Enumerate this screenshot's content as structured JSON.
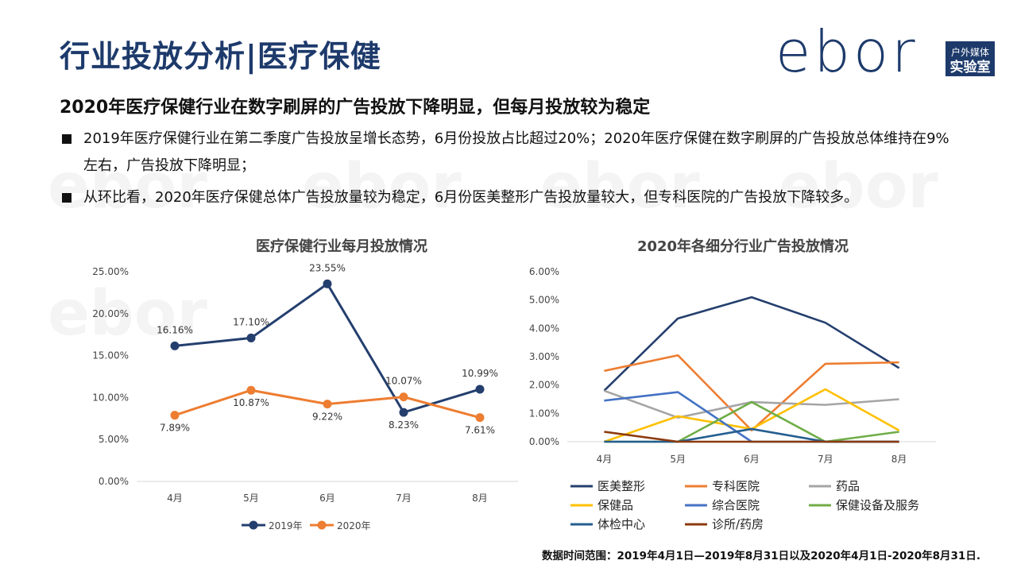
{
  "page": {
    "title": "行业投放分析|医疗保健",
    "subtitle": "2020年医疗保健行业在数字刷屏的广告投放下降明显，但每月投放较为稳定",
    "bullets": [
      "2019年医疗保健行业在第二季度广告投放呈增长态势，6月份投放占比超过20%；2020年医疗保健在数字刷屏的广告投放总体维持在9%左右，广告投放下降明显；",
      "从环比看，2020年医疗保健总体广告投放量较为稳定，6月份医美整形广告投放量较大，但专科医院的广告投放下降较多。"
    ],
    "footer": "数据时间范围：2019年4月1日—2019年8月31日以及2020年4月1日-2020年8月31日."
  },
  "logo": {
    "wordmark": "ebor",
    "line1": "户外媒体",
    "line2": "实验室",
    "color": "#1d3a6b"
  },
  "watermark": "ebor",
  "chart_data": [
    {
      "type": "line",
      "title": "医疗保健行业每月投放情况",
      "categories": [
        "4月",
        "5月",
        "6月",
        "7月",
        "8月"
      ],
      "ylim": [
        0,
        25
      ],
      "yticks": [
        "0.00%",
        "5.00%",
        "10.00%",
        "15.00%",
        "20.00%",
        "25.00%"
      ],
      "series": [
        {
          "name": "2019年",
          "color": "#243f6e",
          "values": [
            16.16,
            17.1,
            23.55,
            8.23,
            10.99
          ],
          "labels": [
            "16.16%",
            "17.10%",
            "23.55%",
            "8.23%",
            "10.99%"
          ]
        },
        {
          "name": "2020年",
          "color": "#ed7d31",
          "values": [
            7.89,
            10.87,
            9.22,
            10.07,
            7.61
          ],
          "labels": [
            "7.89%",
            "10.87%",
            "9.22%",
            "10.07%",
            "7.61%"
          ]
        }
      ],
      "legend": "bottom"
    },
    {
      "type": "line",
      "title": "2020年各细分行业广告投放情况",
      "categories": [
        "4月",
        "5月",
        "6月",
        "7月",
        "8月"
      ],
      "ylim": [
        0,
        6
      ],
      "yticks": [
        "0.00%",
        "1.00%",
        "2.00%",
        "3.00%",
        "4.00%",
        "5.00%",
        "6.00%"
      ],
      "series": [
        {
          "name": "医美整形",
          "color": "#243f6e",
          "values": [
            1.8,
            4.35,
            5.1,
            4.2,
            2.6
          ]
        },
        {
          "name": "专科医院",
          "color": "#ed7d31",
          "values": [
            2.5,
            3.05,
            0.4,
            2.75,
            2.8
          ]
        },
        {
          "name": "药品",
          "color": "#a5a5a5",
          "values": [
            1.8,
            0.85,
            1.4,
            1.3,
            1.5
          ]
        },
        {
          "name": "保健品",
          "color": "#ffc000",
          "values": [
            0.0,
            0.9,
            0.45,
            1.85,
            0.4
          ]
        },
        {
          "name": "综合医院",
          "color": "#4472c4",
          "values": [
            1.45,
            1.75,
            0.0,
            0.0,
            0.0
          ]
        },
        {
          "name": "保健设备及服务",
          "color": "#70ad47",
          "values": [
            0.0,
            0.0,
            1.4,
            0.0,
            0.35
          ]
        },
        {
          "name": "体检中心",
          "color": "#255e91",
          "values": [
            0.0,
            0.0,
            0.45,
            0.0,
            0.0
          ]
        },
        {
          "name": "诊所/药房",
          "color": "#8b3a0e",
          "values": [
            0.35,
            0.0,
            0.0,
            0.0,
            0.0
          ]
        }
      ],
      "legend": "bottom"
    }
  ]
}
